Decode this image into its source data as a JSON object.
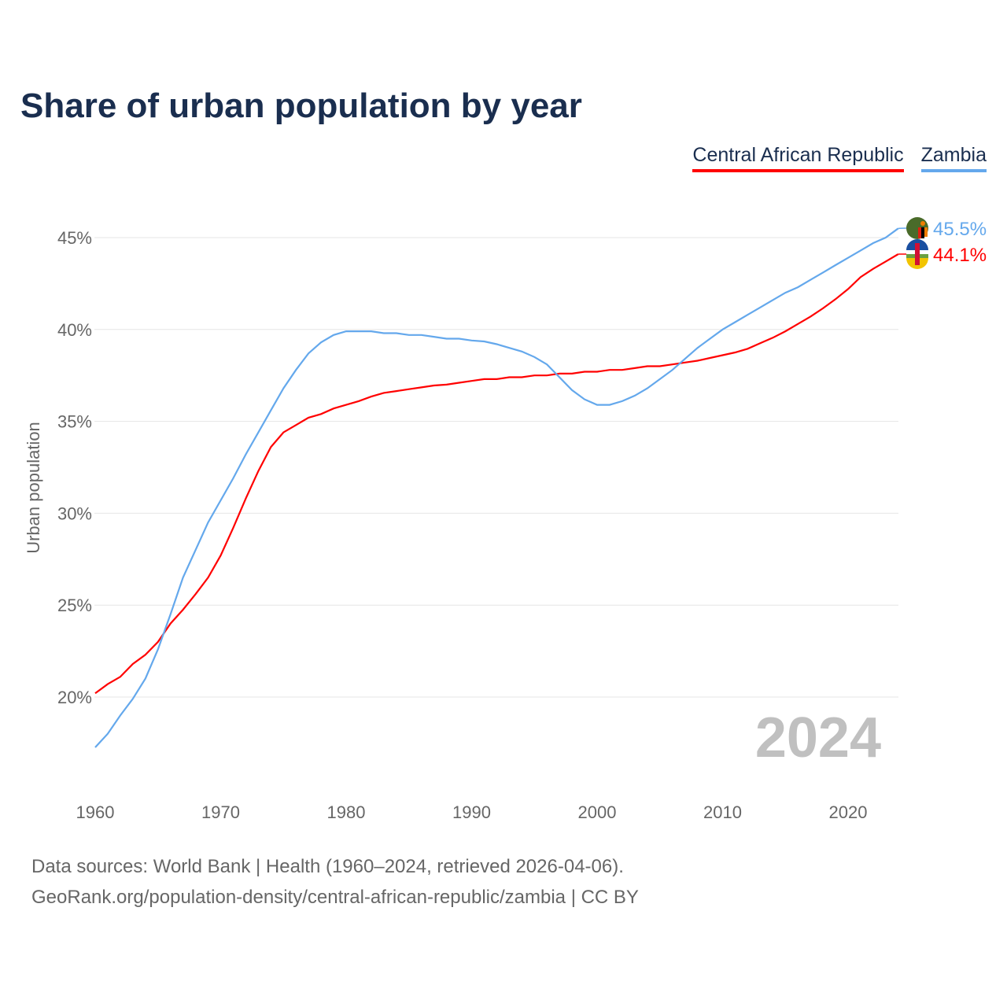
{
  "title": "Share of urban population by year",
  "year_watermark": "2024",
  "footer": {
    "line1": "Data sources: World Bank | Health (1960–2024, retrieved 2026-04-06).",
    "line2": "GeoRank.org/population-density/central-african-republic/zambia | CC BY"
  },
  "chart_data": {
    "type": "line",
    "title": "Share of urban population by year",
    "xlabel": "",
    "ylabel": "Urban population",
    "xlim": [
      1960,
      2024
    ],
    "ylim": [
      17,
      46
    ],
    "x_ticks": [
      "1960",
      "1970",
      "1980",
      "1990",
      "2000",
      "2010",
      "2020"
    ],
    "y_ticks": [
      "20%",
      "25%",
      "30%",
      "35%",
      "40%",
      "45%"
    ],
    "y_tick_values": [
      20,
      25,
      30,
      35,
      40,
      45
    ],
    "grid": true,
    "legend_placement": "top-right",
    "x": [
      1960,
      1961,
      1962,
      1963,
      1964,
      1965,
      1966,
      1967,
      1968,
      1969,
      1970,
      1971,
      1972,
      1973,
      1974,
      1975,
      1976,
      1977,
      1978,
      1979,
      1980,
      1981,
      1982,
      1983,
      1984,
      1985,
      1986,
      1987,
      1988,
      1989,
      1990,
      1991,
      1992,
      1993,
      1994,
      1995,
      1996,
      1997,
      1998,
      1999,
      2000,
      2001,
      2002,
      2003,
      2004,
      2005,
      2006,
      2007,
      2008,
      2009,
      2010,
      2011,
      2012,
      2013,
      2014,
      2015,
      2016,
      2017,
      2018,
      2019,
      2020,
      2021,
      2022,
      2023,
      2024
    ],
    "series": [
      {
        "name": "Central African Republic",
        "color": "#ff0000",
        "end_label": "44.1%",
        "values": [
          20.2,
          20.7,
          21.1,
          21.8,
          22.3,
          23.0,
          24.0,
          24.75,
          25.6,
          26.5,
          27.7,
          29.2,
          30.8,
          32.3,
          33.6,
          34.4,
          34.8,
          35.2,
          35.4,
          35.7,
          35.9,
          36.1,
          36.35,
          36.55,
          36.65,
          36.75,
          36.85,
          36.95,
          37.0,
          37.1,
          37.2,
          37.3,
          37.3,
          37.4,
          37.4,
          37.5,
          37.5,
          37.6,
          37.6,
          37.7,
          37.7,
          37.8,
          37.8,
          37.9,
          38.0,
          38.0,
          38.1,
          38.2,
          38.3,
          38.45,
          38.6,
          38.75,
          38.95,
          39.25,
          39.55,
          39.9,
          40.3,
          40.7,
          41.15,
          41.65,
          42.2,
          42.85,
          43.3,
          43.7,
          44.1
        ]
      },
      {
        "name": "Zambia",
        "color": "#64a8ec",
        "end_label": "45.5%",
        "values": [
          17.26,
          18.0,
          19.0,
          19.9,
          21.0,
          22.6,
          24.5,
          26.5,
          28.0,
          29.5,
          30.7,
          31.9,
          33.2,
          34.4,
          35.6,
          36.8,
          37.8,
          38.7,
          39.3,
          39.7,
          39.9,
          39.9,
          39.9,
          39.8,
          39.8,
          39.7,
          39.7,
          39.6,
          39.5,
          39.5,
          39.4,
          39.35,
          39.2,
          39.0,
          38.8,
          38.5,
          38.1,
          37.4,
          36.7,
          36.2,
          35.9,
          35.9,
          36.1,
          36.4,
          36.8,
          37.3,
          37.8,
          38.4,
          39.0,
          39.5,
          40.0,
          40.4,
          40.8,
          41.2,
          41.6,
          42.0,
          42.3,
          42.7,
          43.1,
          43.5,
          43.9,
          44.3,
          44.7,
          45.0,
          45.5
        ]
      }
    ]
  }
}
